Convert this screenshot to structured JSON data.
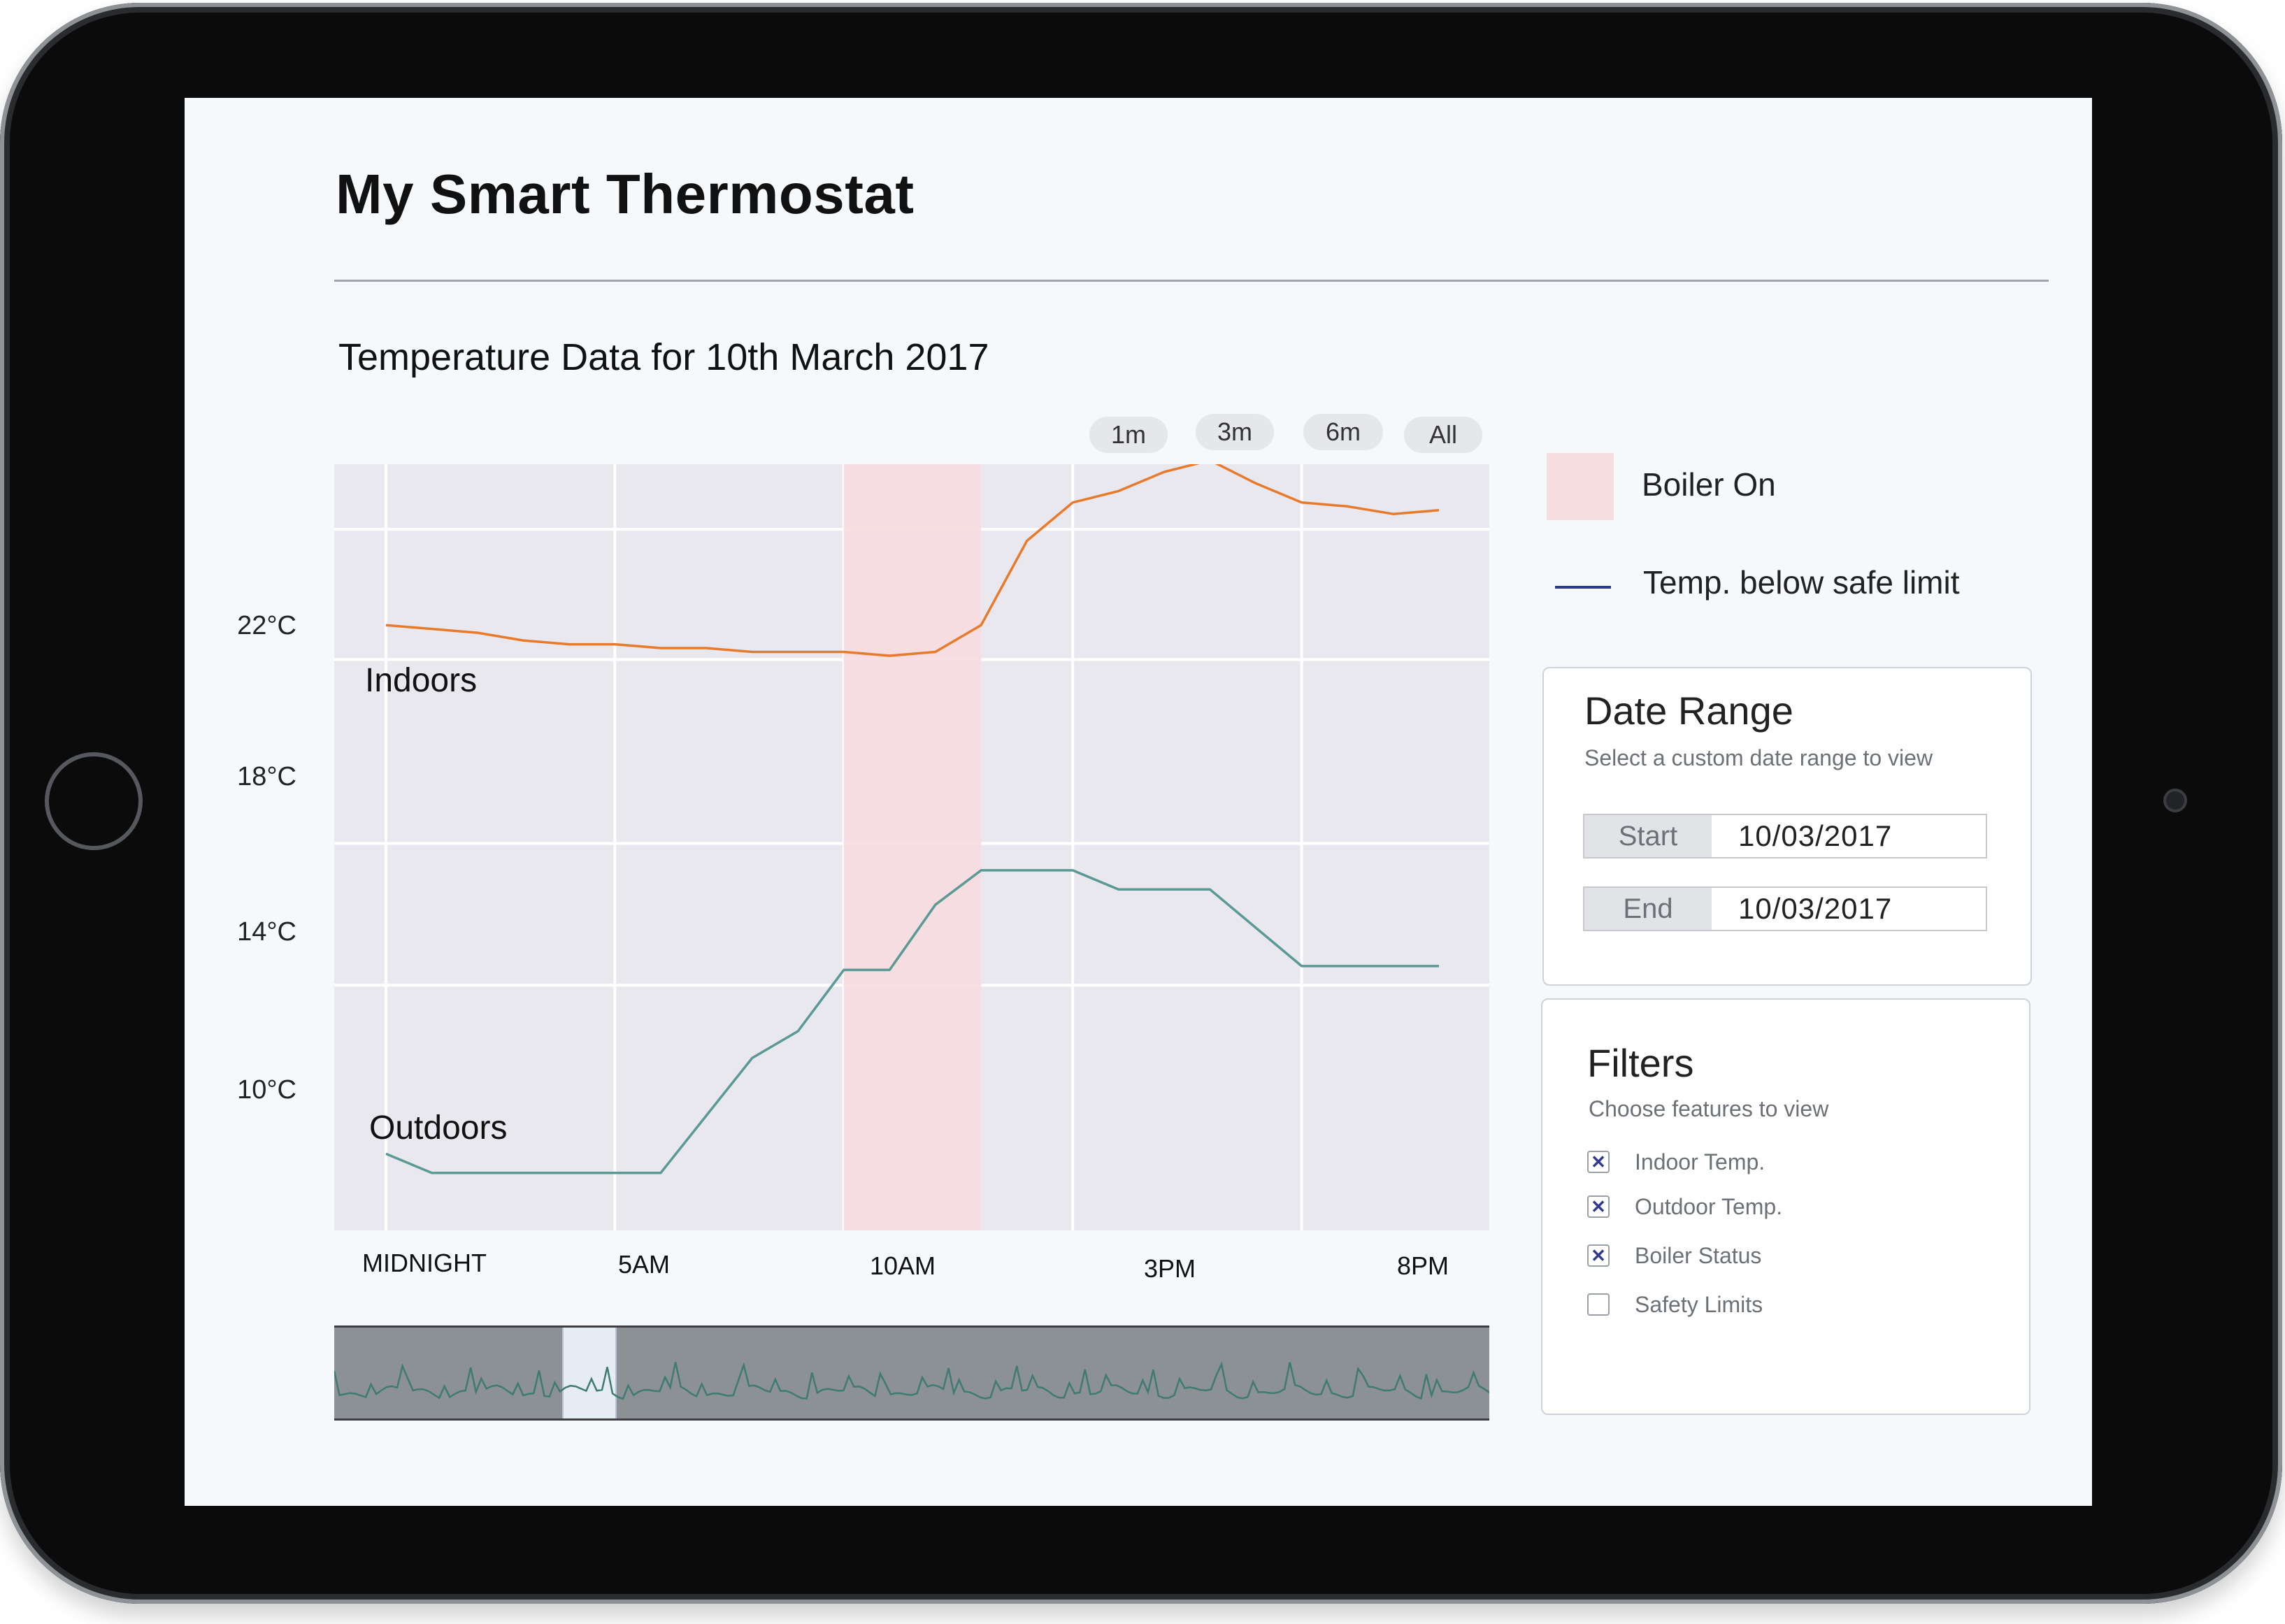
{
  "app": {
    "title": "My Smart Thermostat",
    "subtitle": "Temperature Data for 10th March 2017"
  },
  "range_buttons": [
    {
      "label": "1m"
    },
    {
      "label": "3m"
    },
    {
      "label": "6m"
    },
    {
      "label": "All"
    }
  ],
  "legend": {
    "boiler_on": "Boiler On",
    "safe_limit": "Temp. below safe limit",
    "boiler_color": "#f6dcdf",
    "safe_limit_color": "#2e3a8c"
  },
  "chart_data": {
    "type": "line",
    "y_ticks": [
      "22°C",
      "18°C",
      "14°C",
      "10°C"
    ],
    "x_ticks": [
      "MIDNIGHT",
      "5AM",
      "10AM",
      "3PM",
      "8PM"
    ],
    "xlim": [
      0,
      23
    ],
    "ylim": [
      6.5,
      26.5
    ],
    "boiler_on": [
      10,
      13
    ],
    "grid": true,
    "series": [
      {
        "name": "Indoors",
        "color": "#e87a2c",
        "x": [
          0,
          1,
          2,
          3,
          4,
          5,
          6,
          7,
          8,
          9,
          10,
          11,
          12,
          13,
          14,
          15,
          16,
          17,
          18,
          19,
          20,
          21,
          22,
          23
        ],
        "y": [
          22.3,
          22.2,
          22.1,
          21.9,
          21.8,
          21.8,
          21.7,
          21.7,
          21.6,
          21.6,
          21.6,
          21.5,
          21.6,
          22.3,
          24.5,
          25.5,
          25.8,
          26.3,
          26.6,
          26.0,
          25.5,
          25.4,
          25.2,
          25.3
        ]
      },
      {
        "name": "Outdoors",
        "color": "#5a9994",
        "x": [
          0,
          1,
          2,
          3,
          4,
          5,
          6,
          7,
          8,
          9,
          10,
          11,
          12,
          13,
          14,
          15,
          16,
          17,
          18,
          19,
          20,
          21,
          22,
          23
        ],
        "y": [
          8.5,
          8.0,
          8.0,
          8.0,
          8.0,
          8.0,
          8.0,
          9.5,
          11.0,
          11.7,
          13.3,
          13.3,
          15.0,
          15.9,
          15.9,
          15.9,
          15.4,
          15.4,
          15.4,
          14.4,
          13.4,
          13.4,
          13.4,
          13.4
        ]
      }
    ]
  },
  "date_range": {
    "title": "Date Range",
    "subtitle": "Select a custom date range to view",
    "start_label": "Start",
    "start_value": "10/03/2017",
    "end_label": "End",
    "end_value": "10/03/2017"
  },
  "filters": {
    "title": "Filters",
    "subtitle": "Choose features to view",
    "items": [
      {
        "label": "Indoor Temp.",
        "checked": true,
        "mark": "✕"
      },
      {
        "label": "Outdoor Temp.",
        "checked": true,
        "mark": "✕"
      },
      {
        "label": "Boiler Status",
        "checked": true,
        "mark": "✕"
      },
      {
        "label": "Safety Limits",
        "checked": false,
        "mark": ""
      }
    ]
  }
}
